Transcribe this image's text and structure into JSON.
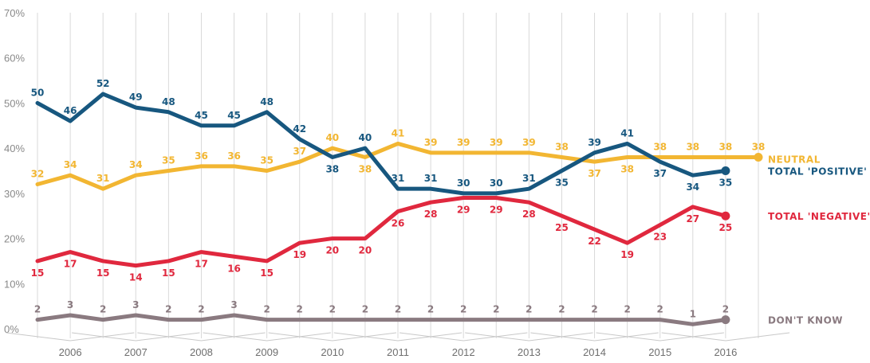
{
  "chart_data": {
    "type": "line",
    "x": [
      2005.5,
      2006,
      2006.5,
      2007,
      2007.5,
      2008,
      2008.5,
      2009,
      2009.5,
      2010,
      2010.5,
      2011,
      2011.5,
      2012,
      2012.5,
      2013,
      2013.5,
      2014,
      2014.5,
      2015,
      2015.5,
      2016,
      2016.5
    ],
    "x_tick_labels": [
      "2006",
      "2007",
      "2008",
      "2009",
      "2010",
      "2011",
      "2012",
      "2013",
      "2014",
      "2015",
      "2016"
    ],
    "x_tick_values": [
      2006,
      2007,
      2008,
      2009,
      2010,
      2011,
      2012,
      2013,
      2014,
      2015,
      2016
    ],
    "xlim": [
      2005.5,
      2016.5
    ],
    "ylim": [
      0,
      70
    ],
    "y_ticks": [
      0,
      10,
      20,
      30,
      40,
      50,
      60,
      70
    ],
    "y_tick_labels": [
      "0%",
      "10%",
      "20%",
      "30%",
      "40%",
      "50%",
      "60%",
      "70%"
    ],
    "grid": "vertical lines at half-year points",
    "legend": "end-of-line labels on the right",
    "series": [
      {
        "name": "NEUTRAL",
        "color": "#f2b632",
        "values": [
          32,
          34,
          31,
          34,
          35,
          36,
          36,
          35,
          37,
          40,
          38,
          41,
          39,
          39,
          39,
          39,
          38,
          37,
          38,
          38,
          38,
          38,
          38
        ],
        "label_positions": [
          "above",
          "above",
          "above",
          "above",
          "above",
          "above",
          "above",
          "above",
          "above",
          "above",
          "below",
          "above",
          "above",
          "above",
          "above",
          "above",
          "above",
          "below",
          "below",
          "above",
          "above",
          "above",
          "above"
        ]
      },
      {
        "name": "TOTAL 'POSITIVE'",
        "color": "#17577f",
        "values": [
          50,
          46,
          52,
          49,
          48,
          45,
          45,
          48,
          42,
          38,
          40,
          31,
          31,
          30,
          30,
          31,
          35,
          39,
          41,
          37,
          34,
          35,
          null
        ],
        "label_positions": [
          "above",
          "above",
          "above",
          "above",
          "above",
          "above",
          "above",
          "above",
          "above",
          "below",
          "above",
          "above",
          "above",
          "above",
          "above",
          "above",
          "below",
          "above",
          "above",
          "below",
          "below",
          "below"
        ]
      },
      {
        "name": "TOTAL 'NEGATIVE'",
        "color": "#e0283e",
        "values": [
          15,
          17,
          15,
          14,
          15,
          17,
          16,
          15,
          19,
          20,
          20,
          26,
          28,
          29,
          29,
          28,
          25,
          22,
          19,
          23,
          27,
          25,
          null
        ],
        "label_positions": [
          "below",
          "below",
          "below",
          "below",
          "below",
          "below",
          "below",
          "below",
          "below",
          "below",
          "below",
          "below",
          "below",
          "below",
          "below",
          "below",
          "below",
          "below",
          "below",
          "below",
          "below",
          "below"
        ]
      },
      {
        "name": "DON'T KNOW",
        "color": "#8a7a80",
        "values": [
          2,
          3,
          2,
          3,
          2,
          2,
          3,
          2,
          2,
          2,
          2,
          2,
          2,
          2,
          2,
          2,
          2,
          2,
          2,
          2,
          1,
          2,
          null
        ],
        "label_positions": [
          "above",
          "above",
          "above",
          "above",
          "above",
          "above",
          "above",
          "above",
          "above",
          "above",
          "above",
          "above",
          "above",
          "above",
          "above",
          "above",
          "above",
          "above",
          "above",
          "above",
          "above",
          "above"
        ]
      }
    ]
  }
}
